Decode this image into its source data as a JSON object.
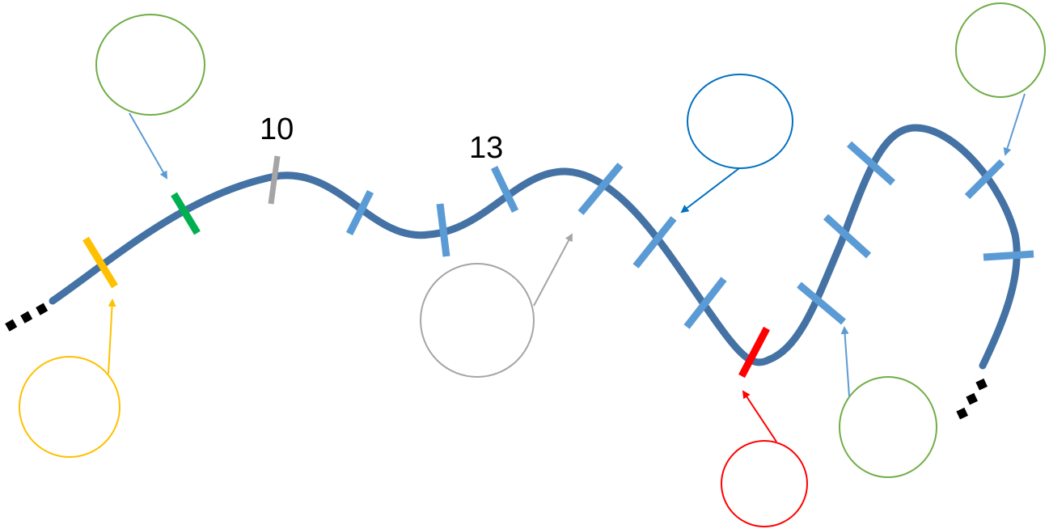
{
  "diagram": {
    "labels": {
      "position_10": "10",
      "position_13": "13"
    },
    "colors": {
      "strand": "#4472a4",
      "tick": "#5b9bd5",
      "yellow": "#ffc000",
      "green": "#00b050",
      "gray": "#a5a5a5",
      "red": "#ff0000",
      "blue": "#0070c0",
      "light_green": "#70ad47",
      "dots": "#000000"
    },
    "callouts": [
      {
        "name": "callout-circle-green-top-left",
        "color": "light_green"
      },
      {
        "name": "callout-circle-yellow",
        "color": "yellow"
      },
      {
        "name": "callout-circle-gray",
        "color": "gray"
      },
      {
        "name": "callout-circle-blue",
        "color": "blue"
      },
      {
        "name": "callout-circle-red",
        "color": "red"
      },
      {
        "name": "callout-circle-green-bottom-right",
        "color": "light_green"
      },
      {
        "name": "callout-circle-green-top-right",
        "color": "light_green"
      }
    ]
  }
}
